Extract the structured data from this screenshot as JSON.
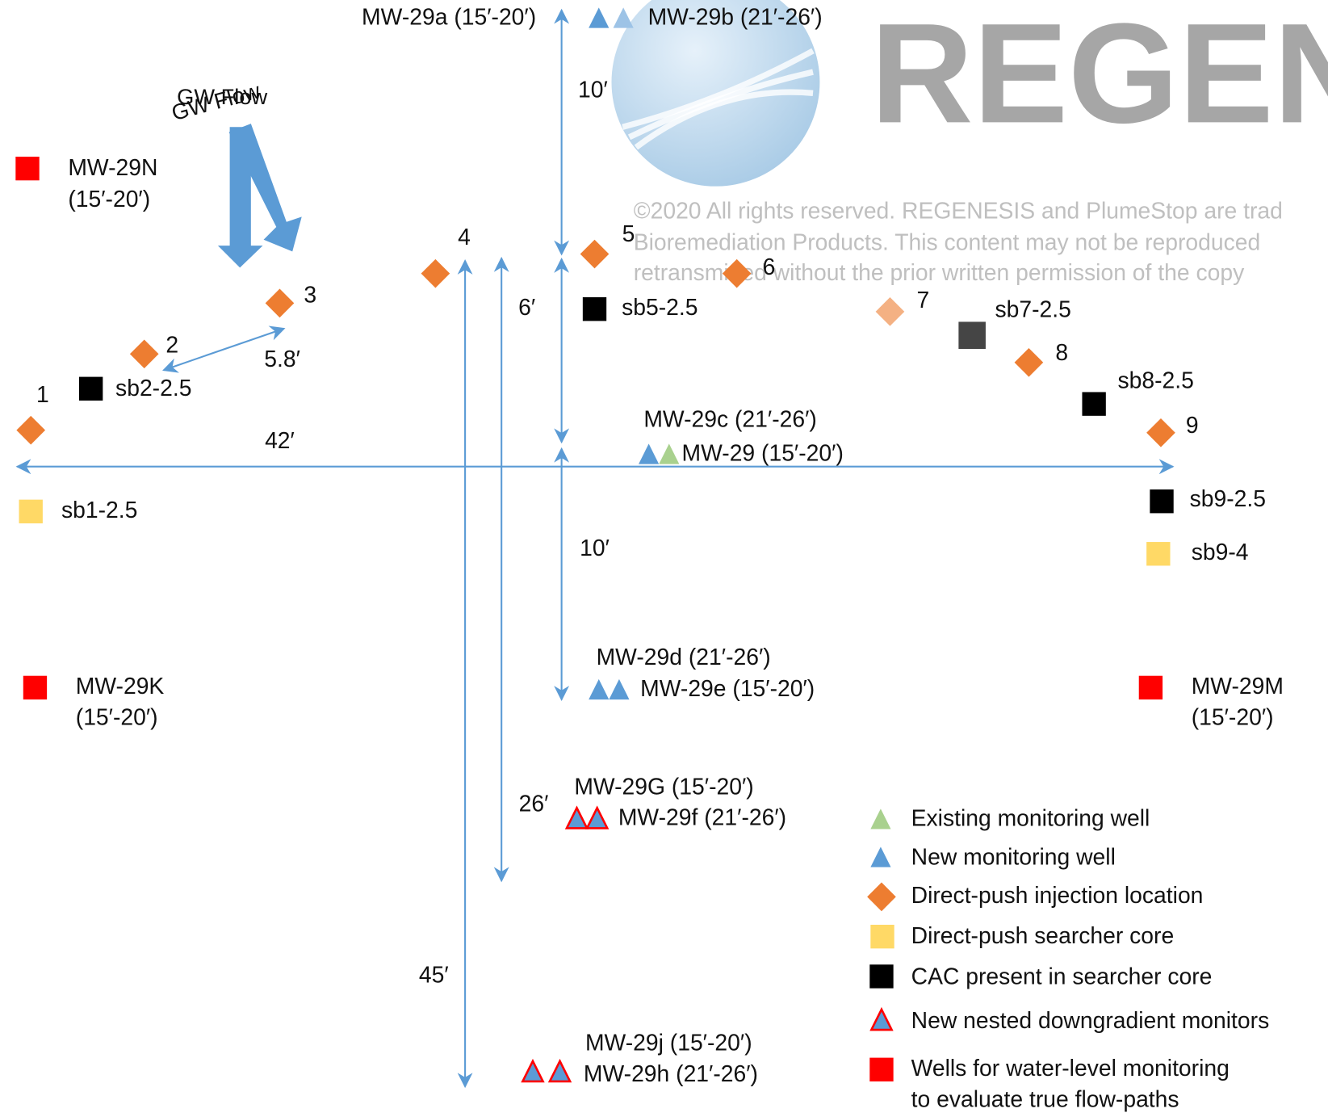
{
  "flow_label": "GW Flow",
  "watermark": {
    "logo": "REGEN",
    "notice": [
      "©2020 All rights reserved. REGENESIS and PlumeStop are trad",
      "Bioremediation Products. This content may not be reproduced",
      "retransmitted without the prior written permission of the copy"
    ]
  },
  "wells": [
    "MW-29a (15′-20′)",
    "MW-29b (21′-26′)",
    "MW-29c (21′-26′)",
    "MW-29 (15′-20′)",
    "MW-29d (21′-26′)",
    "MW-29e (15′-20′)",
    "MW-29G (15′-20′)",
    "MW-29f (21′-26′)",
    "MW-29j (15′-20′)",
    "MW-29h (21′-26′)"
  ],
  "water_level_wells": [
    {
      "name": "MW-29N",
      "depth": "(15′-20′)"
    },
    {
      "name": "MW-29K",
      "depth": "(15′-20′)"
    },
    {
      "name": "MW-29M",
      "depth": "(15′-20′)"
    }
  ],
  "cores": [
    "sb1-2.5",
    "sb2-2.5",
    "sb5-2.5",
    "sb7-2.5",
    "sb8-2.5",
    "sb9-2.5",
    "sb9-4"
  ],
  "injection_points": [
    "1",
    "2",
    "3",
    "4",
    "5",
    "6",
    "7",
    "8",
    "9"
  ],
  "dimensions": [
    "10′",
    "6′",
    "5.8′",
    "42′",
    "10′",
    "26′",
    "45′"
  ],
  "legend": [
    {
      "label": "Existing monitoring well"
    },
    {
      "label": "New monitoring well"
    },
    {
      "label": "Direct-push injection location"
    },
    {
      "label": "Direct-push searcher core"
    },
    {
      "label": "CAC present in searcher core"
    },
    {
      "label": "New nested downgradient monitors"
    },
    {
      "lines": [
        "Wells for water-level monitoring",
        "to evaluate true flow-paths"
      ]
    }
  ]
}
